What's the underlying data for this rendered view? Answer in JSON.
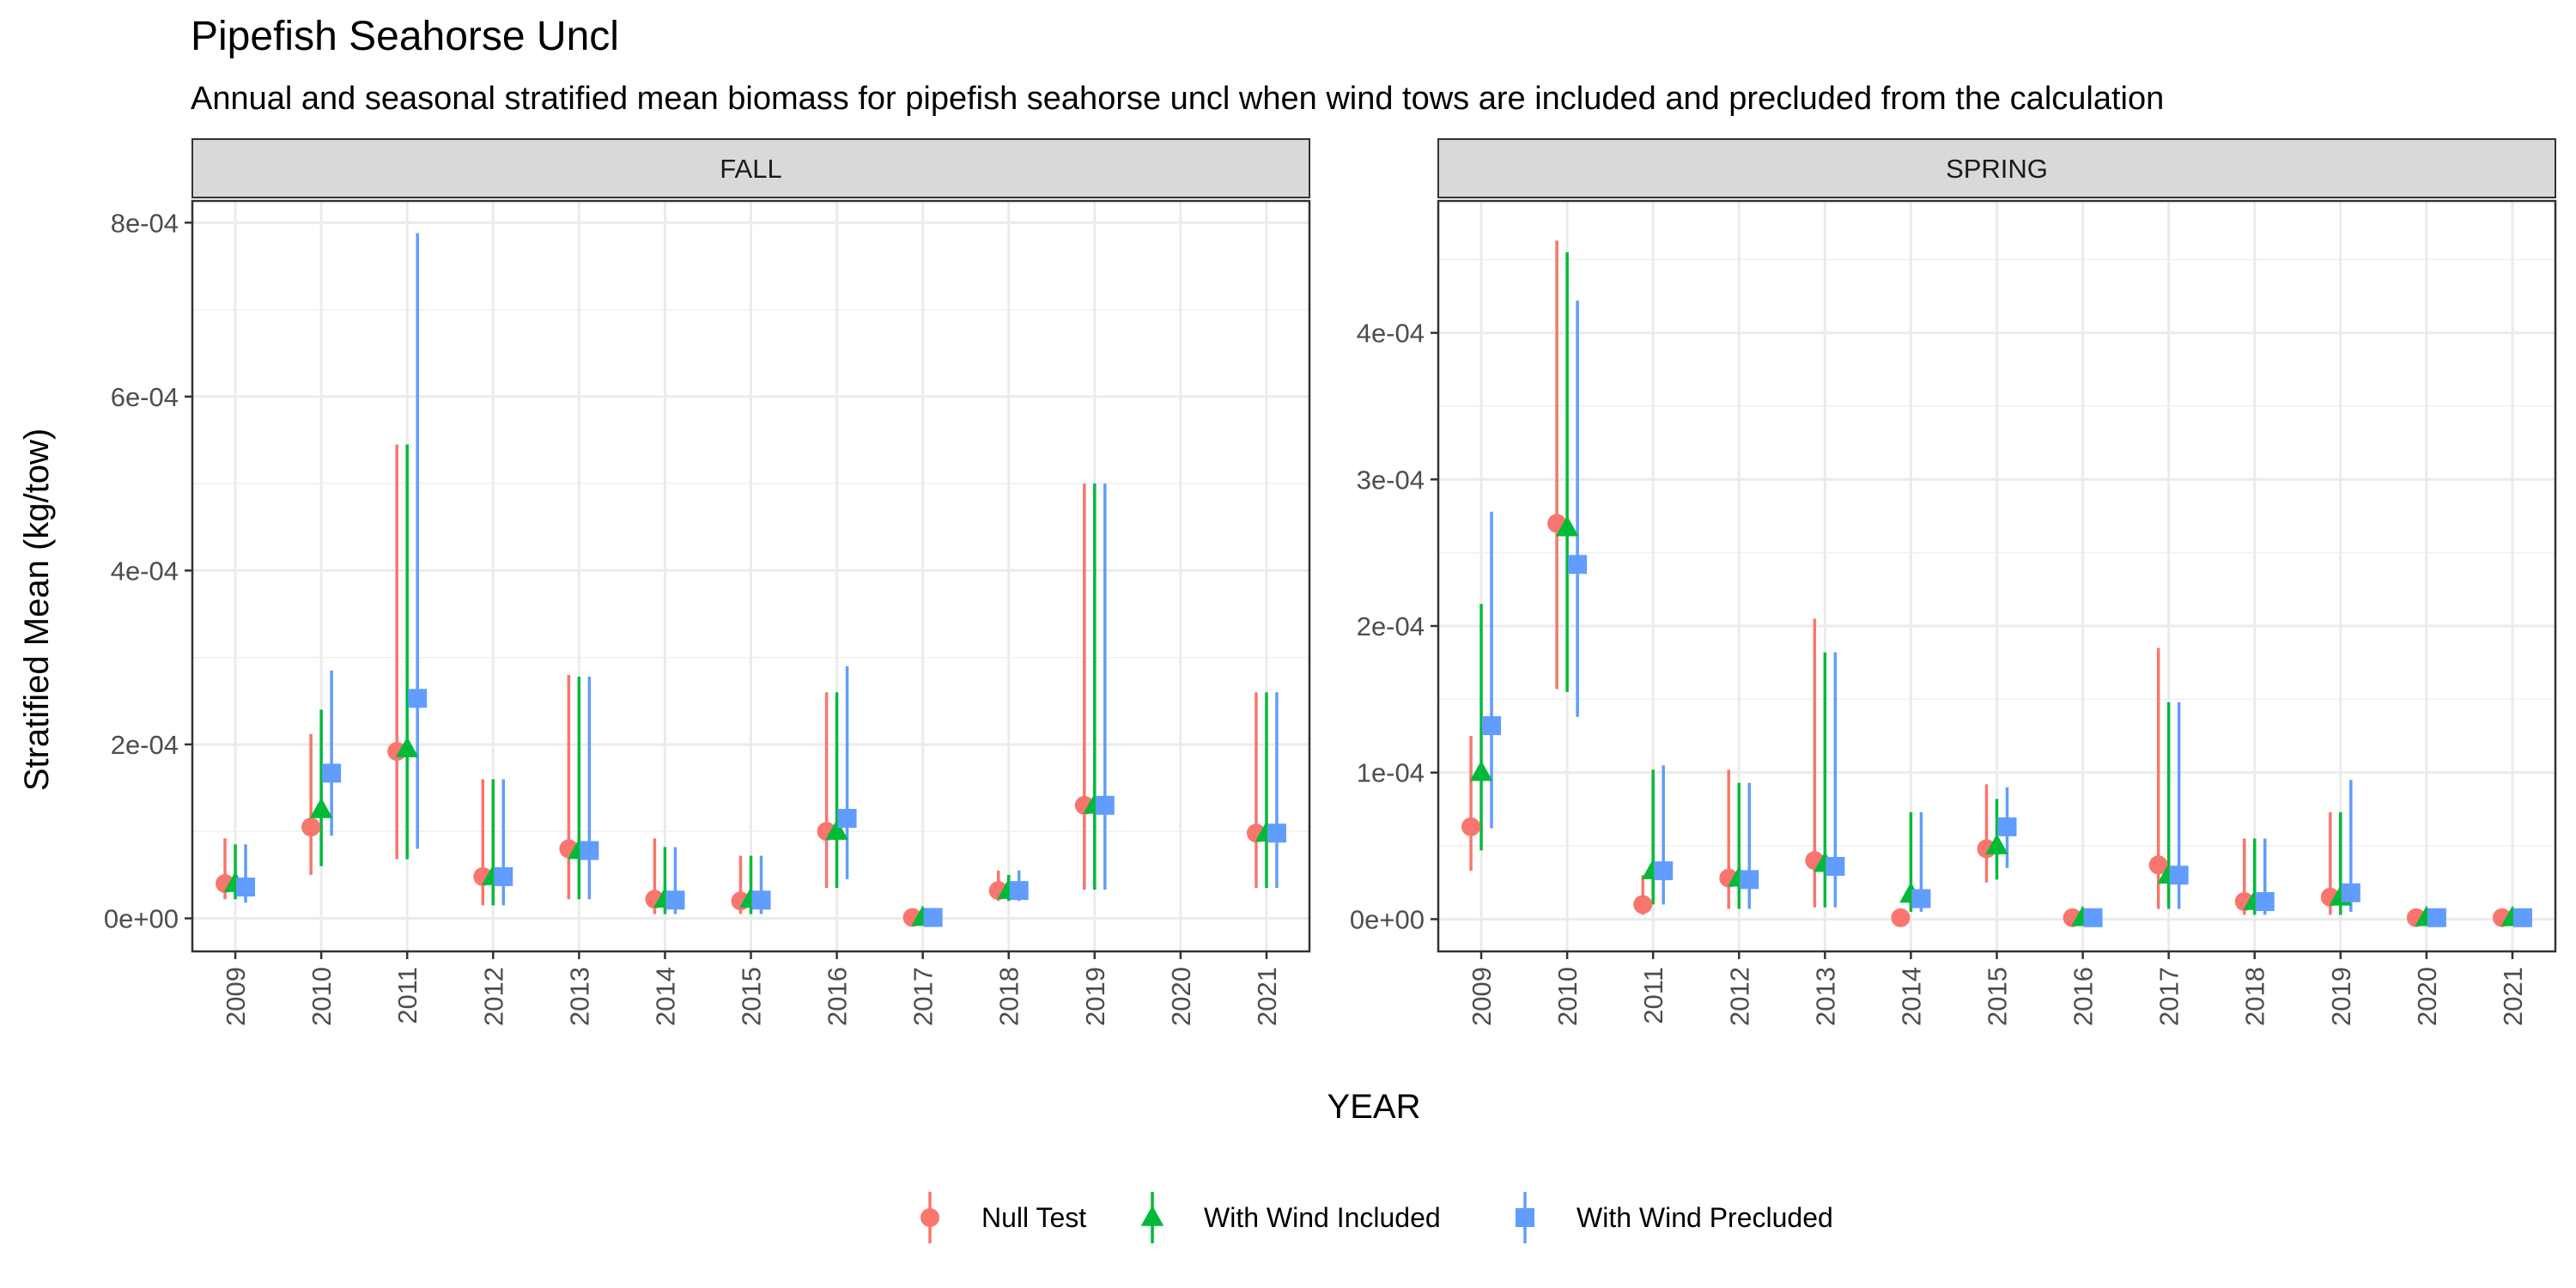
{
  "chart_data": {
    "type": "scatter",
    "title": "Pipefish Seahorse Uncl",
    "subtitle": "Annual and seasonal stratified mean biomass for pipefish seahorse uncl when wind tows are included and precluded from the calculation",
    "xlabel": "YEAR",
    "ylabel": "Stratified Mean (kg/tow)",
    "legend_position": "bottom",
    "grid": true,
    "years": [
      "2009",
      "2010",
      "2011",
      "2012",
      "2013",
      "2014",
      "2015",
      "2016",
      "2017",
      "2018",
      "2019",
      "2020",
      "2021"
    ],
    "series": [
      {
        "name": "Null Test",
        "color": "#F8766D",
        "shape": "circle"
      },
      {
        "name": "With Wind Included",
        "color": "#00BA38",
        "shape": "triangle"
      },
      {
        "name": "With Wind Precluded",
        "color": "#619CFF",
        "shape": "square"
      }
    ],
    "panels": [
      {
        "strip": "FALL",
        "ylim": [
          -3.8e-05,
          0.000825
        ],
        "yticks": [
          0,
          0.0002,
          0.0004,
          0.0006,
          0.0008
        ],
        "ytick_labels": [
          "0e+00",
          "2e-04",
          "4e-04",
          "6e-04",
          "8e-04"
        ],
        "points": [
          [
            {
              "year": "2009",
              "y": 4e-05,
              "lo": 2.2e-05,
              "hi": 9.2e-05
            },
            {
              "year": "2010",
              "y": 0.000105,
              "lo": 5e-05,
              "hi": 0.000212
            },
            {
              "year": "2011",
              "y": 0.000192,
              "lo": 6.8e-05,
              "hi": 0.000545
            },
            {
              "year": "2012",
              "y": 4.8e-05,
              "lo": 1.5e-05,
              "hi": 0.00016
            },
            {
              "year": "2013",
              "y": 8e-05,
              "lo": 2.2e-05,
              "hi": 0.00028
            },
            {
              "year": "2014",
              "y": 2.2e-05,
              "lo": 5e-06,
              "hi": 9.2e-05
            },
            {
              "year": "2015",
              "y": 2e-05,
              "lo": 5e-06,
              "hi": 7.2e-05
            },
            {
              "year": "2016",
              "y": 0.0001,
              "lo": 3.5e-05,
              "hi": 0.00026
            },
            {
              "year": "2017",
              "y": 1e-06,
              "lo": 0.0,
              "hi": 2e-06
            },
            {
              "year": "2018",
              "y": 3.2e-05,
              "lo": 2e-05,
              "hi": 5.5e-05
            },
            {
              "year": "2019",
              "y": 0.00013,
              "lo": 3.3e-05,
              "hi": 0.0005
            },
            {
              "year": "2021",
              "y": 9.8e-05,
              "lo": 3.5e-05,
              "hi": 0.00026
            }
          ],
          [
            {
              "year": "2009",
              "y": 4e-05,
              "lo": 2.2e-05,
              "hi": 8.5e-05
            },
            {
              "year": "2010",
              "y": 0.000125,
              "lo": 6e-05,
              "hi": 0.00024
            },
            {
              "year": "2011",
              "y": 0.000195,
              "lo": 6.8e-05,
              "hi": 0.000545
            },
            {
              "year": "2012",
              "y": 4.8e-05,
              "lo": 1.5e-05,
              "hi": 0.00016
            },
            {
              "year": "2013",
              "y": 7.8e-05,
              "lo": 2.2e-05,
              "hi": 0.000278
            },
            {
              "year": "2014",
              "y": 2.2e-05,
              "lo": 5e-06,
              "hi": 8.2e-05
            },
            {
              "year": "2015",
              "y": 2.2e-05,
              "lo": 5e-06,
              "hi": 7.2e-05
            },
            {
              "year": "2016",
              "y": 0.0001,
              "lo": 3.5e-05,
              "hi": 0.00026
            },
            {
              "year": "2017",
              "y": 1e-06,
              "lo": 0.0,
              "hi": 2e-06
            },
            {
              "year": "2018",
              "y": 3.2e-05,
              "lo": 2e-05,
              "hi": 5e-05
            },
            {
              "year": "2019",
              "y": 0.00013,
              "lo": 3.3e-05,
              "hi": 0.0005
            },
            {
              "year": "2021",
              "y": 9.8e-05,
              "lo": 3.5e-05,
              "hi": 0.00026
            }
          ],
          [
            {
              "year": "2009",
              "y": 3.6e-05,
              "lo": 1.8e-05,
              "hi": 8.5e-05
            },
            {
              "year": "2010",
              "y": 0.000167,
              "lo": 9.5e-05,
              "hi": 0.000285
            },
            {
              "year": "2011",
              "y": 0.000253,
              "lo": 8e-05,
              "hi": 0.000788
            },
            {
              "year": "2012",
              "y": 4.8e-05,
              "lo": 1.5e-05,
              "hi": 0.00016
            },
            {
              "year": "2013",
              "y": 7.8e-05,
              "lo": 2.2e-05,
              "hi": 0.000278
            },
            {
              "year": "2014",
              "y": 2.1e-05,
              "lo": 5e-06,
              "hi": 8.2e-05
            },
            {
              "year": "2015",
              "y": 2.1e-05,
              "lo": 5e-06,
              "hi": 7.2e-05
            },
            {
              "year": "2016",
              "y": 0.000115,
              "lo": 4.5e-05,
              "hi": 0.00029
            },
            {
              "year": "2017",
              "y": 1e-06,
              "lo": 0.0,
              "hi": 2e-06
            },
            {
              "year": "2018",
              "y": 3.2e-05,
              "lo": 2e-05,
              "hi": 5.5e-05
            },
            {
              "year": "2019",
              "y": 0.00013,
              "lo": 3.3e-05,
              "hi": 0.0005
            },
            {
              "year": "2021",
              "y": 9.8e-05,
              "lo": 3.5e-05,
              "hi": 0.00026
            }
          ]
        ]
      },
      {
        "strip": "SPRING",
        "ylim": [
          -2.2e-05,
          0.00049
        ],
        "yticks": [
          0,
          0.0001,
          0.0002,
          0.0003,
          0.0004
        ],
        "ytick_labels": [
          "0e+00",
          "1e-04",
          "2e-04",
          "3e-04",
          "4e-04"
        ],
        "points": [
          [
            {
              "year": "2009",
              "y": 6.3e-05,
              "lo": 3.3e-05,
              "hi": 0.000125
            },
            {
              "year": "2010",
              "y": 0.00027,
              "lo": 0.000157,
              "hi": 0.000463
            },
            {
              "year": "2011",
              "y": 1e-05,
              "lo": 3e-06,
              "hi": 3e-05
            },
            {
              "year": "2012",
              "y": 2.8e-05,
              "lo": 7e-06,
              "hi": 0.000102
            },
            {
              "year": "2013",
              "y": 4e-05,
              "lo": 8e-06,
              "hi": 0.000205
            },
            {
              "year": "2014",
              "y": 1e-06,
              "lo": 0.0,
              "hi": 2e-06
            },
            {
              "year": "2015",
              "y": 4.8e-05,
              "lo": 2.5e-05,
              "hi": 9.2e-05
            },
            {
              "year": "2016",
              "y": 1e-06,
              "lo": 0.0,
              "hi": 2e-06
            },
            {
              "year": "2017",
              "y": 3.7e-05,
              "lo": 7e-06,
              "hi": 0.000185
            },
            {
              "year": "2018",
              "y": 1.2e-05,
              "lo": 3e-06,
              "hi": 5.5e-05
            },
            {
              "year": "2019",
              "y": 1.5e-05,
              "lo": 3e-06,
              "hi": 7.3e-05
            },
            {
              "year": "2020",
              "y": 1e-06,
              "lo": 0.0,
              "hi": 2e-06
            },
            {
              "year": "2021",
              "y": 1e-06,
              "lo": 0.0,
              "hi": 2e-06
            }
          ],
          [
            {
              "year": "2009",
              "y": 0.0001,
              "lo": 4.7e-05,
              "hi": 0.000215
            },
            {
              "year": "2010",
              "y": 0.000267,
              "lo": 0.000155,
              "hi": 0.000455
            },
            {
              "year": "2011",
              "y": 3.3e-05,
              "lo": 1e-05,
              "hi": 0.000102
            },
            {
              "year": "2012",
              "y": 2.8e-05,
              "lo": 7e-06,
              "hi": 9.3e-05
            },
            {
              "year": "2013",
              "y": 3.8e-05,
              "lo": 8e-06,
              "hi": 0.000182
            },
            {
              "year": "2014",
              "y": 1.7e-05,
              "lo": 5e-06,
              "hi": 7.3e-05
            },
            {
              "year": "2015",
              "y": 5e-05,
              "lo": 2.7e-05,
              "hi": 8.2e-05
            },
            {
              "year": "2016",
              "y": 1e-06,
              "lo": 0.0,
              "hi": 2e-06
            },
            {
              "year": "2017",
              "y": 3e-05,
              "lo": 7e-06,
              "hi": 0.000148
            },
            {
              "year": "2018",
              "y": 1.2e-05,
              "lo": 3e-06,
              "hi": 5.5e-05
            },
            {
              "year": "2019",
              "y": 1.5e-05,
              "lo": 3e-06,
              "hi": 7.3e-05
            },
            {
              "year": "2020",
              "y": 1e-06,
              "lo": 0.0,
              "hi": 2e-06
            },
            {
              "year": "2021",
              "y": 1e-06,
              "lo": 0.0,
              "hi": 2e-06
            }
          ],
          [
            {
              "year": "2009",
              "y": 0.000132,
              "lo": 6.2e-05,
              "hi": 0.000278
            },
            {
              "year": "2010",
              "y": 0.000242,
              "lo": 0.000138,
              "hi": 0.000422
            },
            {
              "year": "2011",
              "y": 3.3e-05,
              "lo": 1e-05,
              "hi": 0.000105
            },
            {
              "year": "2012",
              "y": 2.7e-05,
              "lo": 7e-06,
              "hi": 9.3e-05
            },
            {
              "year": "2013",
              "y": 3.6e-05,
              "lo": 8e-06,
              "hi": 0.000182
            },
            {
              "year": "2014",
              "y": 1.4e-05,
              "lo": 5e-06,
              "hi": 7.3e-05
            },
            {
              "year": "2015",
              "y": 6.3e-05,
              "lo": 3.5e-05,
              "hi": 9e-05
            },
            {
              "year": "2016",
              "y": 1e-06,
              "lo": 0.0,
              "hi": 2e-06
            },
            {
              "year": "2017",
              "y": 3e-05,
              "lo": 7e-06,
              "hi": 0.000148
            },
            {
              "year": "2018",
              "y": 1.2e-05,
              "lo": 3e-06,
              "hi": 5.5e-05
            },
            {
              "year": "2019",
              "y": 1.8e-05,
              "lo": 5e-06,
              "hi": 9.5e-05
            },
            {
              "year": "2020",
              "y": 1e-06,
              "lo": 0.0,
              "hi": 2e-06
            },
            {
              "year": "2021",
              "y": 1e-06,
              "lo": 0.0,
              "hi": 2e-06
            }
          ]
        ]
      }
    ]
  }
}
